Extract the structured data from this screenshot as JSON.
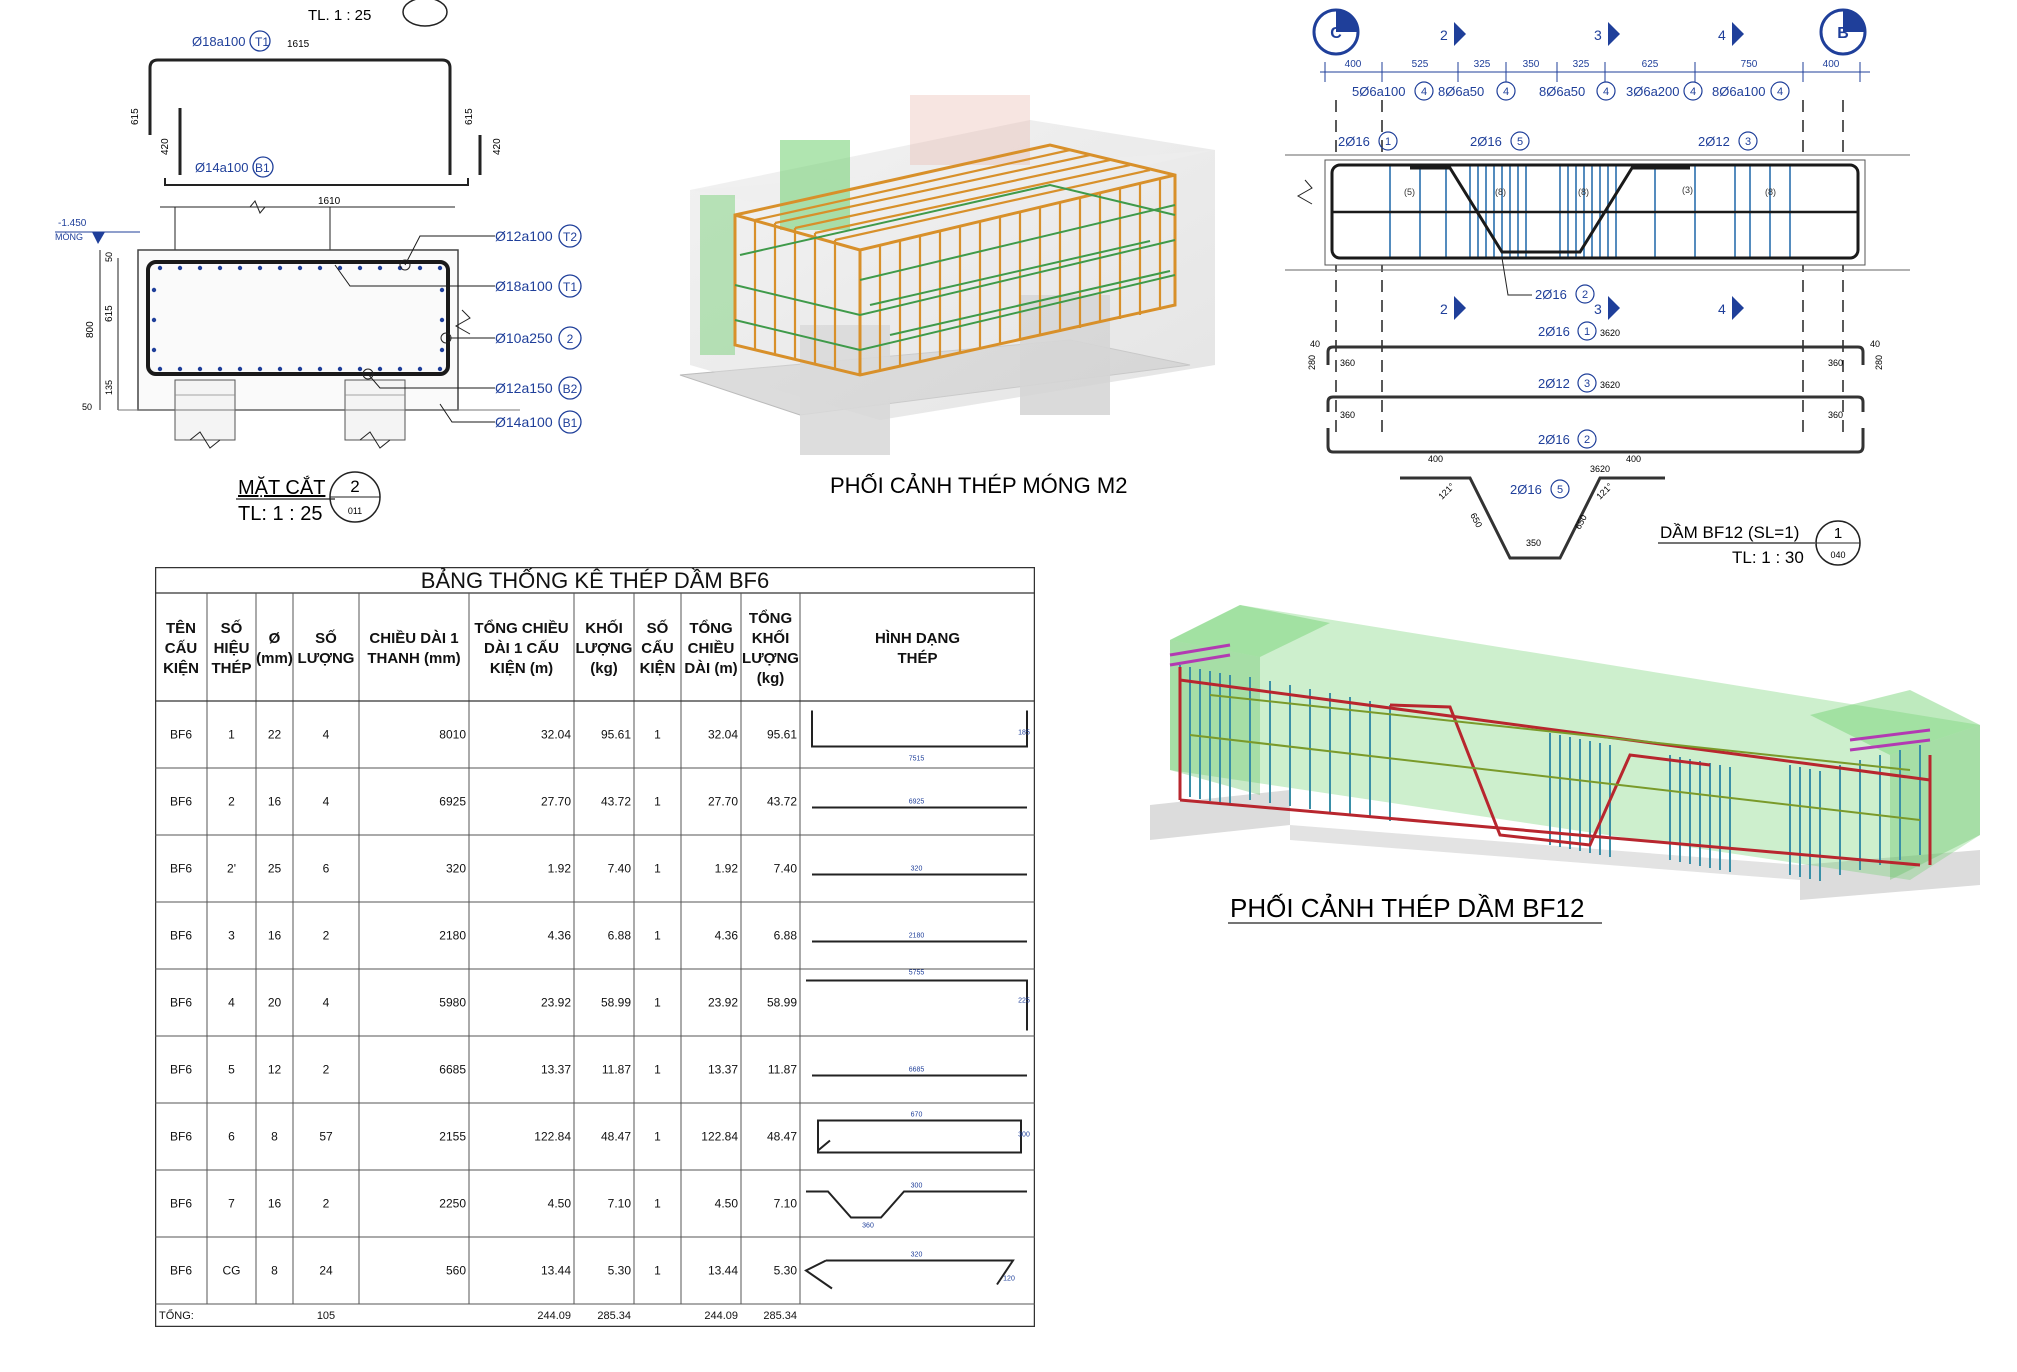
{
  "section": {
    "top_scale_fragment": "TL. 1 : 25",
    "top_bar_label": "Ø18a100",
    "top_bar_tag": "T1",
    "top_len": "1615",
    "top_left_len": "615",
    "top_inner_len": "420",
    "top_right_len": "615",
    "top_right_inner": "420",
    "bottom_bar_label": "Ø14a100",
    "bottom_bar_tag": "B1",
    "width_dim": "1610",
    "level": "-1.450",
    "level_label": "MÓNG",
    "height_total": "800",
    "height_mid": "615",
    "height_low": "135",
    "height_top": "50",
    "height_bot": "50",
    "callouts": [
      {
        "label": "Ø12a100",
        "tag": "T2"
      },
      {
        "label": "Ø18a100",
        "tag": "T1"
      },
      {
        "label": "Ø10a250",
        "tag": "2"
      },
      {
        "label": "Ø12a150",
        "tag": "B2"
      },
      {
        "label": "Ø14a100",
        "tag": "B1"
      }
    ],
    "title": "MẶT CẮT",
    "number": "2",
    "scale": "TL:  1 : 25",
    "sheet": "011"
  },
  "m2_caption": "PHỐI CẢNH THÉP MÓNG M2",
  "bf12_caption": "PHỐI CẢNH THÉP DẦM BF12",
  "beam": {
    "axis_left": "C",
    "axis_right": "B",
    "grid_marks": [
      "2",
      "3",
      "4"
    ],
    "dims": [
      "400",
      "525",
      "325",
      "350",
      "325",
      "625",
      "750",
      "400"
    ],
    "stirrups": [
      {
        "label": "5Ø6a100",
        "tag": "4"
      },
      {
        "label": "8Ø6a50",
        "tag": "4"
      },
      {
        "label": "8Ø6a50",
        "tag": "4"
      },
      {
        "label": "3Ø6a200",
        "tag": "4"
      },
      {
        "label": "8Ø6a100",
        "tag": "4"
      }
    ],
    "bars_top": [
      {
        "label": "2Ø16",
        "tag": "1"
      },
      {
        "label": "2Ø16",
        "tag": "5"
      },
      {
        "label": "2Ø12",
        "tag": "3"
      }
    ],
    "small_tags": [
      "(5)",
      "(8)",
      "(8)",
      "(3)",
      "(8)"
    ],
    "bar_bottom": {
      "label": "2Ø16",
      "tag": "2"
    },
    "shape1": {
      "label": "2Ø16",
      "tag": "1",
      "len": "3620",
      "end": "360",
      "hook": "40",
      "h": "280"
    },
    "shape3": {
      "label": "2Ø12",
      "tag": "3",
      "len": "3620"
    },
    "shape2": {
      "label": "2Ø16",
      "tag": "2",
      "len": "3620",
      "end": "360"
    },
    "shape5": {
      "label": "2Ø16",
      "tag": "5",
      "len": "3620",
      "left": "400",
      "right": "400",
      "slope": "650",
      "bottom": "350",
      "angle": "121°"
    },
    "title": "DẦM BF12 (SL=1)",
    "number": "1",
    "scale": "TL: 1 : 30",
    "sheet": "040"
  },
  "table": {
    "title": "BẢNG THỐNG KÊ THÉP DẦM BF6",
    "headers": [
      [
        "TÊN",
        "CẤU",
        "KIỆN"
      ],
      [
        "SỐ",
        "HIỆU",
        "THÉP"
      ],
      [
        "Ø",
        "(mm)"
      ],
      [
        "SỐ",
        "LƯỢNG"
      ],
      [
        "CHIỀU DÀI 1",
        "THANH (mm)"
      ],
      [
        "TỔNG CHIỀU",
        "DÀI 1 CẤU",
        "KIỆN (m)"
      ],
      [
        "KHỐI",
        "LƯỢNG",
        "(kg)"
      ],
      [
        "SỐ",
        "CẤU",
        "KIỆN"
      ],
      [
        "TỔNG",
        "CHIỀU",
        "DÀI (m)"
      ],
      [
        "TỔNG",
        "KHỐI",
        "LƯỢNG",
        "(kg)"
      ],
      [
        "HÌNH DẠNG",
        "THÉP"
      ]
    ],
    "rows": [
      {
        "cells": [
          "BF6",
          "1",
          "22",
          "4",
          "8010",
          "32.04",
          "95.61",
          "1",
          "32.04",
          "95.61"
        ],
        "shape": "u",
        "shape_label": "7515",
        "shape_side": "185"
      },
      {
        "cells": [
          "BF6",
          "2",
          "16",
          "4",
          "6925",
          "27.70",
          "43.72",
          "1",
          "27.70",
          "43.72"
        ],
        "shape": "line",
        "shape_label": "6925",
        "shape_side": ""
      },
      {
        "cells": [
          "BF6",
          "2'",
          "25",
          "6",
          "320",
          "1.92",
          "7.40",
          "1",
          "1.92",
          "7.40"
        ],
        "shape": "line",
        "shape_label": "320",
        "shape_side": ""
      },
      {
        "cells": [
          "BF6",
          "3",
          "16",
          "2",
          "2180",
          "4.36",
          "6.88",
          "1",
          "4.36",
          "6.88"
        ],
        "shape": "line",
        "shape_label": "2180",
        "shape_side": ""
      },
      {
        "cells": [
          "BF6",
          "4",
          "20",
          "4",
          "5980",
          "23.92",
          "58.99",
          "1",
          "23.92",
          "58.99"
        ],
        "shape": "l",
        "shape_label": "5755",
        "shape_side": "225"
      },
      {
        "cells": [
          "BF6",
          "5",
          "12",
          "2",
          "6685",
          "13.37",
          "11.87",
          "1",
          "13.37",
          "11.87"
        ],
        "shape": "line",
        "shape_label": "6685",
        "shape_side": ""
      },
      {
        "cells": [
          "BF6",
          "6",
          "8",
          "57",
          "2155",
          "122.84",
          "48.47",
          "1",
          "122.84",
          "48.47"
        ],
        "shape": "rect",
        "shape_label": "670",
        "shape_side": "300"
      },
      {
        "cells": [
          "BF6",
          "7",
          "16",
          "2",
          "2250",
          "4.50",
          "7.10",
          "1",
          "4.50",
          "7.10"
        ],
        "shape": "trap",
        "shape_label": "300",
        "shape_side": "360"
      },
      {
        "cells": [
          "BF6",
          "CG",
          "8",
          "24",
          "560",
          "13.44",
          "5.30",
          "1",
          "13.44",
          "5.30"
        ],
        "shape": "z",
        "shape_label": "320",
        "shape_side": "120"
      }
    ],
    "total": {
      "label": "TỔNG:",
      "count": "105",
      "sum_len": "244.09",
      "sum_kg": "285.34",
      "sum_len2": "244.09",
      "sum_kg2": "285.34"
    }
  },
  "colors": {
    "ink": "#1a1a1a",
    "blue": "#1f3f9a",
    "rebar_orange": "#d8902a",
    "rebar_green": "#3f9a4a",
    "concrete": "#cfcfcf",
    "glass_green": "#6fd06f",
    "rebar_red": "#b8262e",
    "rebar_teal": "#3a8fa8"
  }
}
